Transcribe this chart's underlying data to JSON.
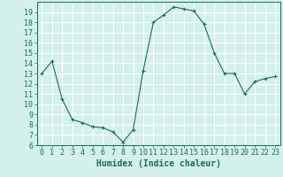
{
  "x": [
    0,
    1,
    2,
    3,
    4,
    5,
    6,
    7,
    8,
    9,
    10,
    11,
    12,
    13,
    14,
    15,
    16,
    17,
    18,
    19,
    20,
    21,
    22,
    23
  ],
  "y": [
    13,
    14.2,
    10.5,
    8.5,
    8.2,
    7.8,
    7.7,
    7.3,
    6.3,
    7.5,
    13.3,
    18.0,
    18.7,
    19.5,
    19.3,
    19.1,
    17.8,
    15.0,
    13.0,
    13.0,
    11.0,
    12.2,
    12.5,
    12.7
  ],
  "xlabel": "Humidex (Indice chaleur)",
  "ylim": [
    6,
    20
  ],
  "xlim": [
    -0.5,
    23.5
  ],
  "yticks": [
    6,
    7,
    8,
    9,
    10,
    11,
    12,
    13,
    14,
    15,
    16,
    17,
    18,
    19
  ],
  "xticks": [
    0,
    1,
    2,
    3,
    4,
    5,
    6,
    7,
    8,
    9,
    10,
    11,
    12,
    13,
    14,
    15,
    16,
    17,
    18,
    19,
    20,
    21,
    22,
    23
  ],
  "line_color": "#1a6b5a",
  "marker_color": "#1a6b5a",
  "bg_color": "#d4f0ec",
  "grid_color": "#b0ddd6",
  "axis_color": "#1a6b5a",
  "tick_color": "#1a6b5a",
  "xlabel_color": "#1a6b5a",
  "label_fontsize": 7,
  "tick_fontsize": 6
}
